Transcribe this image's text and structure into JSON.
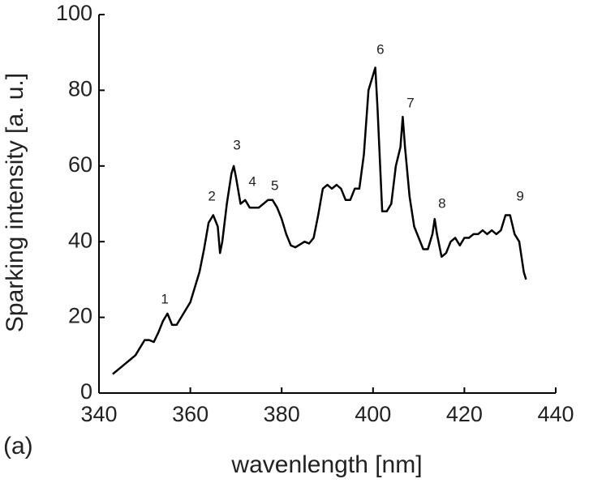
{
  "chart_data": {
    "type": "line",
    "xlabel": "wavenlength [nm]",
    "ylabel": "Sparking intensity [a. u.]",
    "panel_label": "(a)",
    "x": [
      343,
      345,
      347,
      348,
      350,
      351,
      352,
      353,
      354,
      355,
      356,
      357,
      358,
      360,
      362,
      363,
      364,
      365,
      366,
      366.5,
      367,
      368,
      369,
      369.5,
      370,
      371,
      372,
      373,
      375,
      376,
      377,
      378,
      379,
      380,
      381,
      382,
      383,
      385,
      386,
      387,
      388,
      389,
      390,
      391,
      392,
      393,
      394,
      395,
      396,
      397,
      398,
      399,
      400,
      400.5,
      401,
      402,
      403,
      404,
      405,
      406,
      406.5,
      407,
      408,
      409,
      410,
      411,
      412,
      413,
      413.5,
      414,
      415,
      416,
      417,
      418,
      419,
      420,
      421,
      422,
      423,
      424,
      425,
      426,
      427,
      428,
      429,
      430,
      431,
      432,
      433,
      433.5
    ],
    "series": [
      {
        "color": "#000000",
        "values": [
          5,
          7,
          9,
          10,
          14,
          14,
          13.5,
          16,
          19,
          21,
          18,
          18,
          20,
          24,
          32,
          38,
          45,
          47,
          44,
          37,
          40,
          50,
          58,
          60,
          57,
          50,
          51,
          49,
          49,
          50,
          51,
          51,
          49,
          46,
          42,
          39,
          38.5,
          40,
          39.5,
          41,
          47,
          54,
          55,
          54,
          55,
          54,
          51,
          51,
          54,
          54,
          63,
          80,
          84,
          86,
          75,
          48,
          48,
          50,
          60,
          65,
          73,
          65,
          52,
          44,
          41,
          38,
          38,
          42,
          46,
          42,
          36,
          37,
          40,
          41,
          39,
          41,
          41,
          42,
          42,
          43,
          42,
          43,
          42,
          43,
          47,
          47,
          42,
          40,
          32,
          30
        ]
      }
    ],
    "annotations": [
      {
        "text": "1",
        "x": 354.4,
        "y": 24.6
      },
      {
        "text": "2",
        "x": 364.7,
        "y": 51.8
      },
      {
        "text": "3",
        "x": 370.2,
        "y": 65.3
      },
      {
        "text": "4",
        "x": 373.6,
        "y": 55.7
      },
      {
        "text": "5",
        "x": 378.5,
        "y": 54.6
      },
      {
        "text": "6",
        "x": 401.6,
        "y": 90.6
      },
      {
        "text": "7",
        "x": 408.2,
        "y": 76.4
      },
      {
        "text": "8",
        "x": 415.1,
        "y": 49.9
      },
      {
        "text": "9",
        "x": 432.2,
        "y": 51.8
      }
    ],
    "xlim": [
      340,
      440
    ],
    "xticks": [
      340,
      360,
      380,
      400,
      420,
      440
    ],
    "ylim": [
      0,
      100
    ],
    "yticks": [
      0,
      20,
      40,
      60,
      80,
      100
    ]
  }
}
